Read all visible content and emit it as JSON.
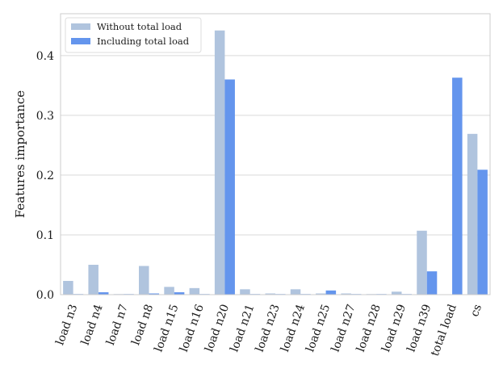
{
  "chart_data": {
    "type": "bar",
    "title": "",
    "xlabel": "",
    "ylabel": "Features importance",
    "ylim": [
      0,
      0.47
    ],
    "yticks": [
      0.0,
      0.1,
      0.2,
      0.3,
      0.4
    ],
    "ytick_labels": [
      "0.0",
      "0.1",
      "0.2",
      "0.3",
      "0.4"
    ],
    "grid": true,
    "legend_position": "top-left",
    "categories": [
      "load n3",
      "load n4",
      "load n7",
      "load n8",
      "load n15",
      "load n16",
      "load n20",
      "load n21",
      "load n23",
      "load n24",
      "load n25",
      "load n27",
      "load n28",
      "load n29",
      "load n39",
      "total load",
      "cs"
    ],
    "series": [
      {
        "name": "Without total load",
        "color": "#b0c4de",
        "values": [
          0.023,
          0.05,
          0.001,
          0.048,
          0.013,
          0.011,
          0.442,
          0.009,
          0.002,
          0.009,
          0.002,
          0.002,
          0.001,
          0.005,
          0.107,
          0,
          0.269
        ]
      },
      {
        "name": "Including total load",
        "color": "#6495ed",
        "values": [
          0.001,
          0.004,
          0.001,
          0.002,
          0.004,
          0.001,
          0.36,
          0.001,
          0.001,
          0.001,
          0.007,
          0.001,
          0.001,
          0.001,
          0.039,
          0.363,
          0.209
        ]
      }
    ]
  }
}
